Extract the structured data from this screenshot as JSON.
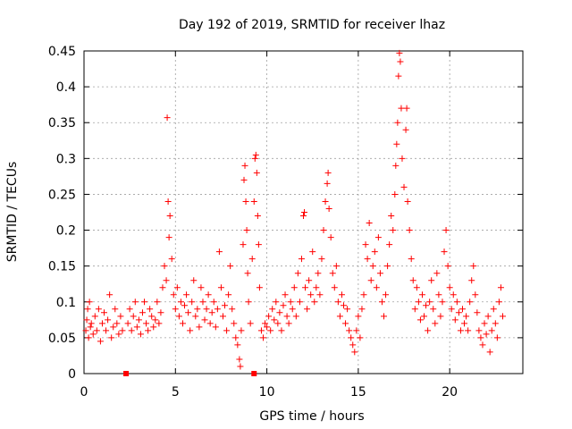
{
  "chart_data": {
    "type": "scatter",
    "title": "Day 192 of 2019, SRMTID for receiver lhaz",
    "xlabel": "GPS time / hours",
    "ylabel": "SRMTID / TECUs",
    "xlim": [
      0,
      24
    ],
    "ylim": [
      0,
      0.45
    ],
    "xticks": [
      0,
      5,
      10,
      15,
      20
    ],
    "xtick_labels": [
      "0",
      "5",
      "10",
      "15",
      "20"
    ],
    "yticks": [
      0,
      0.05,
      0.1,
      0.15,
      0.2,
      0.25,
      0.3,
      0.35,
      0.4,
      0.45
    ],
    "ytick_labels": [
      "0",
      "0.05",
      "0.1",
      "0.15",
      "0.2",
      "0.25",
      "0.3",
      "0.35",
      "0.4",
      "0.45"
    ],
    "grid": true,
    "marker": "+",
    "color": "#ff0000",
    "gap_markers": [
      {
        "x": 2.3,
        "y": 0
      },
      {
        "x": 9.3,
        "y": 0
      }
    ],
    "series": [
      {
        "name": "SRMTID",
        "points": [
          [
            0.1,
            0.06
          ],
          [
            0.15,
            0.075
          ],
          [
            0.2,
            0.09
          ],
          [
            0.25,
            0.05
          ],
          [
            0.3,
            0.1
          ],
          [
            0.35,
            0.065
          ],
          [
            0.4,
            0.07
          ],
          [
            0.5,
            0.055
          ],
          [
            0.6,
            0.08
          ],
          [
            0.7,
            0.06
          ],
          [
            0.8,
            0.09
          ],
          [
            0.9,
            0.045
          ],
          [
            1.0,
            0.07
          ],
          [
            1.1,
            0.085
          ],
          [
            1.2,
            0.06
          ],
          [
            1.3,
            0.075
          ],
          [
            1.4,
            0.11
          ],
          [
            1.5,
            0.05
          ],
          [
            1.6,
            0.065
          ],
          [
            1.7,
            0.09
          ],
          [
            1.8,
            0.07
          ],
          [
            1.9,
            0.055
          ],
          [
            2.0,
            0.08
          ],
          [
            2.1,
            0.06
          ],
          [
            2.4,
            0.07
          ],
          [
            2.5,
            0.09
          ],
          [
            2.6,
            0.06
          ],
          [
            2.7,
            0.08
          ],
          [
            2.8,
            0.1
          ],
          [
            2.9,
            0.065
          ],
          [
            3.0,
            0.075
          ],
          [
            3.1,
            0.055
          ],
          [
            3.2,
            0.085
          ],
          [
            3.3,
            0.1
          ],
          [
            3.4,
            0.07
          ],
          [
            3.5,
            0.06
          ],
          [
            3.6,
            0.09
          ],
          [
            3.7,
            0.08
          ],
          [
            3.8,
            0.065
          ],
          [
            3.9,
            0.075
          ],
          [
            4.0,
            0.1
          ],
          [
            4.1,
            0.07
          ],
          [
            4.2,
            0.085
          ],
          [
            4.3,
            0.12
          ],
          [
            4.4,
            0.15
          ],
          [
            4.5,
            0.13
          ],
          [
            4.55,
            0.357
          ],
          [
            4.6,
            0.24
          ],
          [
            4.65,
            0.19
          ],
          [
            4.7,
            0.22
          ],
          [
            4.8,
            0.16
          ],
          [
            4.9,
            0.11
          ],
          [
            5.0,
            0.09
          ],
          [
            5.1,
            0.12
          ],
          [
            5.2,
            0.08
          ],
          [
            5.3,
            0.1
          ],
          [
            5.4,
            0.07
          ],
          [
            5.5,
            0.095
          ],
          [
            5.6,
            0.11
          ],
          [
            5.7,
            0.085
          ],
          [
            5.8,
            0.06
          ],
          [
            5.9,
            0.1
          ],
          [
            6.0,
            0.13
          ],
          [
            6.1,
            0.08
          ],
          [
            6.2,
            0.09
          ],
          [
            6.3,
            0.065
          ],
          [
            6.4,
            0.12
          ],
          [
            6.5,
            0.1
          ],
          [
            6.6,
            0.075
          ],
          [
            6.7,
            0.09
          ],
          [
            6.8,
            0.11
          ],
          [
            6.9,
            0.07
          ],
          [
            7.0,
            0.085
          ],
          [
            7.1,
            0.1
          ],
          [
            7.2,
            0.065
          ],
          [
            7.3,
            0.09
          ],
          [
            7.4,
            0.17
          ],
          [
            7.5,
            0.12
          ],
          [
            7.6,
            0.08
          ],
          [
            7.7,
            0.095
          ],
          [
            7.8,
            0.06
          ],
          [
            7.9,
            0.11
          ],
          [
            8.0,
            0.15
          ],
          [
            8.1,
            0.09
          ],
          [
            8.2,
            0.07
          ],
          [
            8.3,
            0.05
          ],
          [
            8.4,
            0.04
          ],
          [
            8.5,
            0.02
          ],
          [
            8.55,
            0.01
          ],
          [
            8.6,
            0.06
          ],
          [
            8.7,
            0.18
          ],
          [
            8.75,
            0.27
          ],
          [
            8.8,
            0.29
          ],
          [
            8.85,
            0.24
          ],
          [
            8.9,
            0.2
          ],
          [
            8.95,
            0.14
          ],
          [
            9.0,
            0.1
          ],
          [
            9.1,
            0.07
          ],
          [
            9.2,
            0.16
          ],
          [
            9.3,
            0.24
          ],
          [
            9.35,
            0.3
          ],
          [
            9.4,
            0.305
          ],
          [
            9.45,
            0.28
          ],
          [
            9.5,
            0.22
          ],
          [
            9.55,
            0.18
          ],
          [
            9.6,
            0.12
          ],
          [
            9.7,
            0.06
          ],
          [
            9.8,
            0.05
          ],
          [
            9.9,
            0.07
          ],
          [
            10.0,
            0.065
          ],
          [
            10.1,
            0.08
          ],
          [
            10.2,
            0.06
          ],
          [
            10.3,
            0.09
          ],
          [
            10.4,
            0.075
          ],
          [
            10.5,
            0.1
          ],
          [
            10.6,
            0.07
          ],
          [
            10.7,
            0.085
          ],
          [
            10.8,
            0.06
          ],
          [
            10.9,
            0.095
          ],
          [
            11.0,
            0.11
          ],
          [
            11.1,
            0.08
          ],
          [
            11.2,
            0.07
          ],
          [
            11.3,
            0.1
          ],
          [
            11.4,
            0.09
          ],
          [
            11.5,
            0.12
          ],
          [
            11.6,
            0.08
          ],
          [
            11.7,
            0.14
          ],
          [
            11.8,
            0.1
          ],
          [
            11.9,
            0.16
          ],
          [
            12.0,
            0.22
          ],
          [
            12.05,
            0.225
          ],
          [
            12.1,
            0.12
          ],
          [
            12.2,
            0.09
          ],
          [
            12.3,
            0.13
          ],
          [
            12.4,
            0.11
          ],
          [
            12.5,
            0.17
          ],
          [
            12.6,
            0.1
          ],
          [
            12.7,
            0.12
          ],
          [
            12.8,
            0.14
          ],
          [
            12.9,
            0.11
          ],
          [
            13.0,
            0.16
          ],
          [
            13.1,
            0.2
          ],
          [
            13.2,
            0.24
          ],
          [
            13.3,
            0.265
          ],
          [
            13.35,
            0.28
          ],
          [
            13.4,
            0.23
          ],
          [
            13.5,
            0.19
          ],
          [
            13.6,
            0.14
          ],
          [
            13.7,
            0.12
          ],
          [
            13.8,
            0.15
          ],
          [
            13.9,
            0.1
          ],
          [
            14.0,
            0.08
          ],
          [
            14.1,
            0.11
          ],
          [
            14.2,
            0.095
          ],
          [
            14.3,
            0.07
          ],
          [
            14.4,
            0.09
          ],
          [
            14.5,
            0.06
          ],
          [
            14.6,
            0.05
          ],
          [
            14.7,
            0.04
          ],
          [
            14.8,
            0.03
          ],
          [
            14.9,
            0.06
          ],
          [
            15.0,
            0.08
          ],
          [
            15.1,
            0.05
          ],
          [
            15.2,
            0.09
          ],
          [
            15.3,
            0.11
          ],
          [
            15.4,
            0.18
          ],
          [
            15.5,
            0.16
          ],
          [
            15.6,
            0.21
          ],
          [
            15.7,
            0.13
          ],
          [
            15.8,
            0.15
          ],
          [
            15.9,
            0.17
          ],
          [
            16.0,
            0.12
          ],
          [
            16.1,
            0.19
          ],
          [
            16.2,
            0.14
          ],
          [
            16.3,
            0.1
          ],
          [
            16.4,
            0.08
          ],
          [
            16.5,
            0.11
          ],
          [
            16.6,
            0.15
          ],
          [
            16.7,
            0.18
          ],
          [
            16.8,
            0.22
          ],
          [
            16.9,
            0.2
          ],
          [
            17.0,
            0.25
          ],
          [
            17.05,
            0.29
          ],
          [
            17.1,
            0.32
          ],
          [
            17.15,
            0.35
          ],
          [
            17.2,
            0.415
          ],
          [
            17.25,
            0.447
          ],
          [
            17.3,
            0.435
          ],
          [
            17.35,
            0.37
          ],
          [
            17.4,
            0.3
          ],
          [
            17.5,
            0.26
          ],
          [
            17.6,
            0.34
          ],
          [
            17.65,
            0.37
          ],
          [
            17.7,
            0.24
          ],
          [
            17.8,
            0.2
          ],
          [
            17.9,
            0.16
          ],
          [
            18.0,
            0.13
          ],
          [
            18.1,
            0.09
          ],
          [
            18.2,
            0.12
          ],
          [
            18.3,
            0.1
          ],
          [
            18.4,
            0.075
          ],
          [
            18.5,
            0.11
          ],
          [
            18.6,
            0.08
          ],
          [
            18.7,
            0.095
          ],
          [
            18.8,
            0.06
          ],
          [
            18.9,
            0.1
          ],
          [
            19.0,
            0.13
          ],
          [
            19.1,
            0.09
          ],
          [
            19.2,
            0.07
          ],
          [
            19.3,
            0.14
          ],
          [
            19.4,
            0.11
          ],
          [
            19.5,
            0.08
          ],
          [
            19.6,
            0.1
          ],
          [
            19.7,
            0.17
          ],
          [
            19.8,
            0.2
          ],
          [
            19.9,
            0.15
          ],
          [
            20.0,
            0.12
          ],
          [
            20.1,
            0.09
          ],
          [
            20.2,
            0.11
          ],
          [
            20.3,
            0.075
          ],
          [
            20.4,
            0.1
          ],
          [
            20.5,
            0.085
          ],
          [
            20.6,
            0.06
          ],
          [
            20.7,
            0.09
          ],
          [
            20.8,
            0.07
          ],
          [
            20.9,
            0.08
          ],
          [
            21.0,
            0.06
          ],
          [
            21.1,
            0.1
          ],
          [
            21.2,
            0.13
          ],
          [
            21.3,
            0.15
          ],
          [
            21.4,
            0.11
          ],
          [
            21.5,
            0.085
          ],
          [
            21.6,
            0.06
          ],
          [
            21.7,
            0.05
          ],
          [
            21.8,
            0.04
          ],
          [
            21.9,
            0.07
          ],
          [
            22.0,
            0.055
          ],
          [
            22.1,
            0.08
          ],
          [
            22.2,
            0.03
          ],
          [
            22.3,
            0.06
          ],
          [
            22.4,
            0.09
          ],
          [
            22.5,
            0.07
          ],
          [
            22.6,
            0.05
          ],
          [
            22.7,
            0.1
          ],
          [
            22.8,
            0.12
          ],
          [
            22.9,
            0.08
          ]
        ]
      }
    ]
  }
}
